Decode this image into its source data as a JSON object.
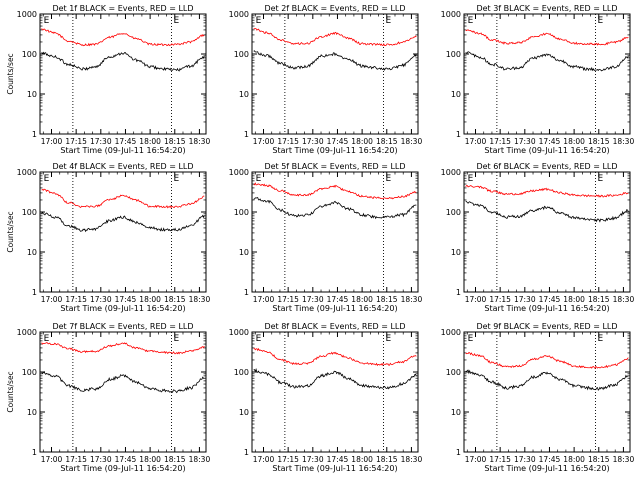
{
  "window": {
    "title": ""
  },
  "panel_ids": [
    "Det 1f",
    "Det 2f",
    "Det 3f",
    "Det 4f",
    "Det 5f",
    "Det 6f",
    "Det 7f",
    "Det 8f",
    "Det 9f"
  ],
  "chart_data": [
    {
      "type": "line",
      "title": "Det 1f BLACK = Events, RED = LLD",
      "xlabel": "Start Time (09-Jul-11 16:54:20)",
      "ylabel": "Counts/sec",
      "yscale": "log",
      "ylim": [
        1,
        1000
      ],
      "xlim": [
        "16:53",
        "18:34"
      ],
      "x_ticks": [
        "17:00",
        "17:15",
        "17:30",
        "17:45",
        "18:00",
        "18:15",
        "18:30"
      ],
      "y_ticks": [
        "1",
        "10",
        "100",
        "1000"
      ],
      "markers": [
        {
          "time": "17:13",
          "label": ""
        },
        {
          "time": "18:13",
          "label": "E"
        },
        {
          "time": "16:54",
          "label": "E"
        }
      ],
      "series": [
        {
          "color": "#ff0000",
          "values": [
            420,
            330,
            210,
            170,
            175,
            260,
            330,
            240,
            175,
            170,
            175,
            200,
            300
          ]
        },
        {
          "color": "#000000",
          "values": [
            105,
            85,
            55,
            42,
            48,
            85,
            105,
            70,
            48,
            42,
            40,
            50,
            85
          ]
        }
      ]
    },
    {
      "type": "line",
      "title": "Det 2f BLACK = Events, RED = LLD",
      "xlabel": "Start Time (09-Jul-11 16:54:20)",
      "ylabel": "",
      "yscale": "log",
      "ylim": [
        1,
        1000
      ],
      "xlim": [
        "16:53",
        "18:34"
      ],
      "x_ticks": [
        "17:00",
        "17:15",
        "17:30",
        "17:45",
        "18:00",
        "18:15",
        "18:30"
      ],
      "y_ticks": [
        "1",
        "10",
        "100",
        "1000"
      ],
      "markers": [
        {
          "time": "17:13",
          "label": ""
        },
        {
          "time": "18:13",
          "label": "E"
        },
        {
          "time": "16:54",
          "label": "E"
        }
      ],
      "series": [
        {
          "color": "#ff0000",
          "values": [
            420,
            340,
            220,
            180,
            185,
            270,
            330,
            245,
            180,
            175,
            170,
            195,
            280
          ]
        },
        {
          "color": "#000000",
          "values": [
            115,
            90,
            58,
            45,
            50,
            88,
            100,
            72,
            50,
            45,
            42,
            52,
            95
          ]
        }
      ]
    },
    {
      "type": "line",
      "title": "Det 3f BLACK = Events, RED = LLD",
      "xlabel": "Start Time (09-Jul-11 16:54:20)",
      "ylabel": "",
      "yscale": "log",
      "ylim": [
        1,
        1000
      ],
      "xlim": [
        "16:53",
        "18:34"
      ],
      "x_ticks": [
        "17:00",
        "17:15",
        "17:30",
        "17:45",
        "18:00",
        "18:15",
        "18:30"
      ],
      "y_ticks": [
        "1",
        "10",
        "100",
        "1000"
      ],
      "markers": [
        {
          "time": "17:13",
          "label": ""
        },
        {
          "time": "18:13",
          "label": "E"
        },
        {
          "time": "16:54",
          "label": "E"
        }
      ],
      "series": [
        {
          "color": "#ff0000",
          "values": [
            400,
            330,
            220,
            185,
            190,
            270,
            320,
            240,
            185,
            180,
            175,
            195,
            260
          ]
        },
        {
          "color": "#000000",
          "values": [
            110,
            85,
            55,
            42,
            46,
            80,
            95,
            68,
            48,
            42,
            40,
            48,
            85
          ]
        }
      ]
    },
    {
      "type": "line",
      "title": "Det 4f BLACK = Events, RED = LLD",
      "xlabel": "Start Time (09-Jul-11 16:54:20)",
      "ylabel": "Counts/sec",
      "yscale": "log",
      "ylim": [
        1,
        1000
      ],
      "xlim": [
        "16:53",
        "18:34"
      ],
      "x_ticks": [
        "17:00",
        "17:15",
        "17:30",
        "17:45",
        "18:00",
        "18:15",
        "18:30"
      ],
      "y_ticks": [
        "1",
        "10",
        "100",
        "1000"
      ],
      "markers": [
        {
          "time": "17:13",
          "label": ""
        },
        {
          "time": "18:13",
          "label": "E"
        },
        {
          "time": "16:54",
          "label": "E"
        }
      ],
      "series": [
        {
          "color": "#ff0000",
          "values": [
            360,
            290,
            170,
            135,
            140,
            200,
            260,
            195,
            140,
            135,
            135,
            160,
            240
          ]
        },
        {
          "color": "#000000",
          "values": [
            95,
            75,
            45,
            35,
            38,
            60,
            75,
            55,
            40,
            36,
            36,
            45,
            80
          ]
        }
      ]
    },
    {
      "type": "line",
      "title": "Det 5f BLACK = Events, RED = LLD",
      "xlabel": "Start Time (09-Jul-11 16:54:20)",
      "ylabel": "",
      "yscale": "log",
      "ylim": [
        1,
        1000
      ],
      "xlim": [
        "16:53",
        "18:34"
      ],
      "x_ticks": [
        "17:00",
        "17:15",
        "17:30",
        "17:45",
        "18:00",
        "18:15",
        "18:30"
      ],
      "y_ticks": [
        "1",
        "10",
        "100",
        "1000"
      ],
      "markers": [
        {
          "time": "17:13",
          "label": ""
        },
        {
          "time": "18:13",
          "label": "E"
        },
        {
          "time": "16:54",
          "label": "E"
        }
      ],
      "series": [
        {
          "color": "#ff0000",
          "values": [
            500,
            460,
            340,
            260,
            270,
            380,
            440,
            320,
            250,
            230,
            220,
            240,
            320
          ]
        },
        {
          "color": "#000000",
          "values": [
            220,
            190,
            110,
            80,
            85,
            140,
            170,
            120,
            85,
            75,
            75,
            85,
            150
          ]
        }
      ]
    },
    {
      "type": "line",
      "title": "Det 6f BLACK = Events, RED = LLD",
      "xlabel": "Start Time (09-Jul-11 16:54:20)",
      "ylabel": "",
      "yscale": "log",
      "ylim": [
        1,
        1000
      ],
      "xlim": [
        "16:53",
        "18:34"
      ],
      "x_ticks": [
        "17:00",
        "17:15",
        "17:30",
        "17:45",
        "18:00",
        "18:15",
        "18:30"
      ],
      "y_ticks": [
        "1",
        "10",
        "100",
        "1000"
      ],
      "markers": [
        {
          "time": "17:13",
          "label": ""
        },
        {
          "time": "18:13",
          "label": "E"
        },
        {
          "time": "16:54",
          "label": "E"
        }
      ],
      "series": [
        {
          "color": "#ff0000",
          "values": [
            450,
            420,
            330,
            280,
            285,
            340,
            370,
            300,
            265,
            255,
            250,
            260,
            300
          ]
        },
        {
          "color": "#000000",
          "values": [
            175,
            150,
            95,
            75,
            78,
            110,
            130,
            95,
            72,
            65,
            62,
            70,
            110
          ]
        }
      ]
    },
    {
      "type": "line",
      "title": "Det 7f BLACK = Events, RED = LLD",
      "xlabel": "Start Time (09-Jul-11 16:54:20)",
      "ylabel": "Counts/sec",
      "yscale": "log",
      "ylim": [
        1,
        1000
      ],
      "xlim": [
        "16:53",
        "18:34"
      ],
      "x_ticks": [
        "17:00",
        "17:15",
        "17:30",
        "17:45",
        "18:00",
        "18:15",
        "18:30"
      ],
      "y_ticks": [
        "1",
        "10",
        "100",
        "1000"
      ],
      "markers": [
        {
          "time": "17:13",
          "label": ""
        },
        {
          "time": "18:13",
          "label": "E"
        },
        {
          "time": "16:54",
          "label": "E"
        }
      ],
      "series": [
        {
          "color": "#ff0000",
          "values": [
            520,
            500,
            380,
            320,
            330,
            450,
            520,
            400,
            330,
            310,
            300,
            330,
            420
          ]
        },
        {
          "color": "#000000",
          "values": [
            95,
            80,
            45,
            35,
            38,
            65,
            80,
            55,
            38,
            34,
            33,
            40,
            75
          ]
        }
      ]
    },
    {
      "type": "line",
      "title": "Det 8f BLACK = Events, RED = LLD",
      "xlabel": "Start Time (09-Jul-11 16:54:20)",
      "ylabel": "",
      "yscale": "log",
      "ylim": [
        1,
        1000
      ],
      "xlim": [
        "16:53",
        "18:34"
      ],
      "x_ticks": [
        "17:00",
        "17:15",
        "17:30",
        "17:45",
        "18:00",
        "18:15",
        "18:30"
      ],
      "y_ticks": [
        "1",
        "10",
        "100",
        "1000"
      ],
      "markers": [
        {
          "time": "17:13",
          "label": ""
        },
        {
          "time": "18:13",
          "label": "E"
        },
        {
          "time": "16:54",
          "label": "E"
        }
      ],
      "series": [
        {
          "color": "#ff0000",
          "values": [
            380,
            320,
            200,
            160,
            165,
            250,
            300,
            220,
            165,
            155,
            155,
            180,
            260
          ]
        },
        {
          "color": "#000000",
          "values": [
            110,
            90,
            55,
            42,
            45,
            80,
            100,
            68,
            46,
            42,
            40,
            50,
            85
          ]
        }
      ]
    },
    {
      "type": "line",
      "title": "Det 9f BLACK = Events, RED = LLD",
      "xlabel": "Start Time (09-Jul-11 16:54:20)",
      "ylabel": "",
      "yscale": "log",
      "ylim": [
        1,
        1000
      ],
      "xlim": [
        "16:53",
        "18:34"
      ],
      "x_ticks": [
        "17:00",
        "17:15",
        "17:30",
        "17:45",
        "18:00",
        "18:15",
        "18:30"
      ],
      "y_ticks": [
        "1",
        "10",
        "100",
        "1000"
      ],
      "markers": [
        {
          "time": "17:13",
          "label": ""
        },
        {
          "time": "18:13",
          "label": "E"
        },
        {
          "time": "16:54",
          "label": "E"
        }
      ],
      "series": [
        {
          "color": "#ff0000",
          "values": [
            300,
            260,
            170,
            135,
            140,
            210,
            250,
            185,
            140,
            130,
            130,
            150,
            220
          ]
        },
        {
          "color": "#000000",
          "values": [
            105,
            85,
            55,
            40,
            44,
            75,
            95,
            65,
            45,
            40,
            38,
            48,
            80
          ]
        }
      ]
    }
  ]
}
